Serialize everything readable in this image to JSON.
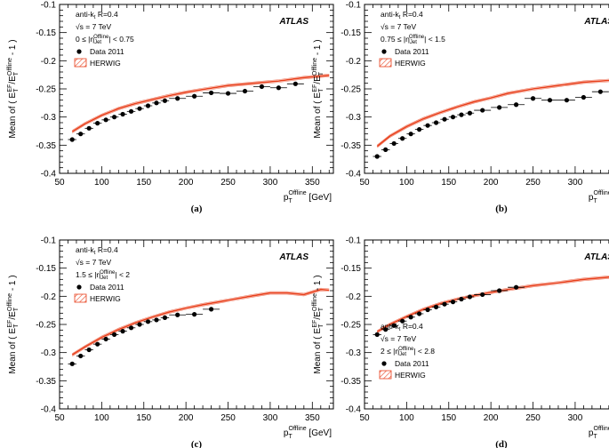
{
  "chart_data": [
    {
      "panel_label": "(a)",
      "type": "scatter",
      "ylabel": "Mean of ( E_T^EF/E_T^Offline - 1 )",
      "xlabel": "p_T^Offline [GeV]",
      "xlim": [
        50,
        375
      ],
      "ylim": [
        -0.4,
        -0.1
      ],
      "experiment": "ATLAS",
      "annotations": [
        "anti-kt R=0.4",
        "√s = 7 TeV",
        "0 ≤ |η_Jet^Offline| < 0.75"
      ],
      "legend": [
        "Data 2011",
        "HERWIG"
      ],
      "legend_position": "top-left",
      "series": [
        {
          "name": "Data 2011",
          "kind": "points",
          "x": [
            65,
            75,
            85,
            95,
            105,
            115,
            125,
            135,
            145,
            155,
            165,
            175,
            190,
            210,
            230,
            250,
            270,
            290,
            310,
            330
          ],
          "y": [
            -0.34,
            -0.33,
            -0.32,
            -0.311,
            -0.305,
            -0.3,
            -0.295,
            -0.29,
            -0.285,
            -0.28,
            -0.275,
            -0.271,
            -0.267,
            -0.263,
            -0.257,
            -0.258,
            -0.254,
            -0.246,
            -0.248,
            -0.241
          ]
        },
        {
          "name": "HERWIG",
          "kind": "line",
          "x": [
            65,
            80,
            100,
            120,
            140,
            160,
            180,
            200,
            220,
            250,
            280,
            310,
            340,
            370
          ],
          "y": [
            -0.326,
            -0.312,
            -0.297,
            -0.285,
            -0.276,
            -0.269,
            -0.262,
            -0.256,
            -0.251,
            -0.244,
            -0.24,
            -0.236,
            -0.23,
            -0.226
          ]
        }
      ]
    },
    {
      "panel_label": "(b)",
      "type": "scatter",
      "ylabel": "Mean of ( E_T^EF/E_T^Offline - 1 )",
      "xlabel": "p_T^Offline [GeV]",
      "xlim": [
        50,
        375
      ],
      "ylim": [
        -0.4,
        -0.1
      ],
      "experiment": "ATLAS",
      "annotations": [
        "anti-kt R=0.4",
        "√s = 7 TeV",
        "0.75 ≤ |η_Jet^Offline| < 1.5"
      ],
      "legend": [
        "Data 2011",
        "HERWIG"
      ],
      "legend_position": "top-left",
      "series": [
        {
          "name": "Data 2011",
          "kind": "points",
          "x": [
            65,
            75,
            85,
            95,
            105,
            115,
            125,
            135,
            145,
            155,
            165,
            175,
            190,
            210,
            230,
            250,
            270,
            290,
            310,
            330
          ],
          "y": [
            -0.37,
            -0.358,
            -0.347,
            -0.338,
            -0.33,
            -0.322,
            -0.315,
            -0.31,
            -0.304,
            -0.3,
            -0.296,
            -0.293,
            -0.288,
            -0.283,
            -0.278,
            -0.267,
            -0.27,
            -0.27,
            -0.265,
            -0.255
          ]
        },
        {
          "name": "HERWIG",
          "kind": "line",
          "x": [
            65,
            80,
            100,
            120,
            140,
            160,
            180,
            200,
            220,
            250,
            280,
            310,
            340,
            370
          ],
          "y": [
            -0.352,
            -0.334,
            -0.317,
            -0.303,
            -0.292,
            -0.282,
            -0.273,
            -0.266,
            -0.258,
            -0.25,
            -0.244,
            -0.238,
            -0.235,
            -0.232
          ]
        }
      ]
    },
    {
      "panel_label": "(c)",
      "type": "scatter",
      "ylabel": "Mean of ( E_T^EF/E_T^Offline - 1 )",
      "xlabel": "p_T^Offline [GeV]",
      "xlim": [
        50,
        375
      ],
      "ylim": [
        -0.4,
        -0.1
      ],
      "experiment": "ATLAS",
      "annotations": [
        "anti-kt R=0.4",
        "√s = 7 TeV",
        "1.5 ≤ |η_Jet^Offline| < 2"
      ],
      "legend": [
        "Data 2011",
        "HERWIG"
      ],
      "legend_position": "top-left",
      "series": [
        {
          "name": "Data 2011",
          "kind": "points",
          "x": [
            65,
            75,
            85,
            95,
            105,
            115,
            125,
            135,
            145,
            155,
            165,
            175,
            190,
            210,
            230
          ],
          "y": [
            -0.32,
            -0.306,
            -0.295,
            -0.285,
            -0.276,
            -0.268,
            -0.262,
            -0.256,
            -0.25,
            -0.245,
            -0.242,
            -0.238,
            -0.233,
            -0.232,
            -0.223
          ]
        },
        {
          "name": "HERWIG",
          "kind": "line",
          "x": [
            65,
            80,
            100,
            120,
            140,
            160,
            180,
            200,
            220,
            250,
            280,
            300,
            320,
            340,
            360,
            370
          ],
          "y": [
            -0.304,
            -0.29,
            -0.273,
            -0.259,
            -0.247,
            -0.237,
            -0.228,
            -0.221,
            -0.215,
            -0.207,
            -0.199,
            -0.194,
            -0.194,
            -0.197,
            -0.188,
            -0.189
          ]
        }
      ]
    },
    {
      "panel_label": "(d)",
      "type": "scatter",
      "ylabel": "Mean of ( E_T^EF/E_T^Offline - 1 )",
      "xlabel": "p_T^Offline [GeV]",
      "xlim": [
        50,
        375
      ],
      "ylim": [
        -0.4,
        -0.1
      ],
      "experiment": "ATLAS",
      "annotations": [
        "anti-kt R=0.4",
        "√s = 7 TeV",
        "2 ≤ |η_Jet^Offline| < 2.8"
      ],
      "legend": [
        "Data 2011",
        "HERWIG"
      ],
      "legend_position": "bottom-left",
      "series": [
        {
          "name": "Data 2011",
          "kind": "points",
          "x": [
            65,
            75,
            85,
            95,
            105,
            115,
            125,
            135,
            145,
            155,
            165,
            175,
            190,
            210,
            230
          ],
          "y": [
            -0.268,
            -0.259,
            -0.252,
            -0.244,
            -0.237,
            -0.231,
            -0.224,
            -0.219,
            -0.214,
            -0.21,
            -0.205,
            -0.201,
            -0.197,
            -0.19,
            -0.184
          ]
        },
        {
          "name": "HERWIG",
          "kind": "line",
          "x": [
            65,
            80,
            100,
            120,
            140,
            160,
            180,
            200,
            220,
            250,
            280,
            310,
            340,
            370
          ],
          "y": [
            -0.263,
            -0.25,
            -0.236,
            -0.223,
            -0.213,
            -0.205,
            -0.199,
            -0.193,
            -0.188,
            -0.181,
            -0.176,
            -0.17,
            -0.166,
            -0.162
          ]
        }
      ]
    }
  ]
}
